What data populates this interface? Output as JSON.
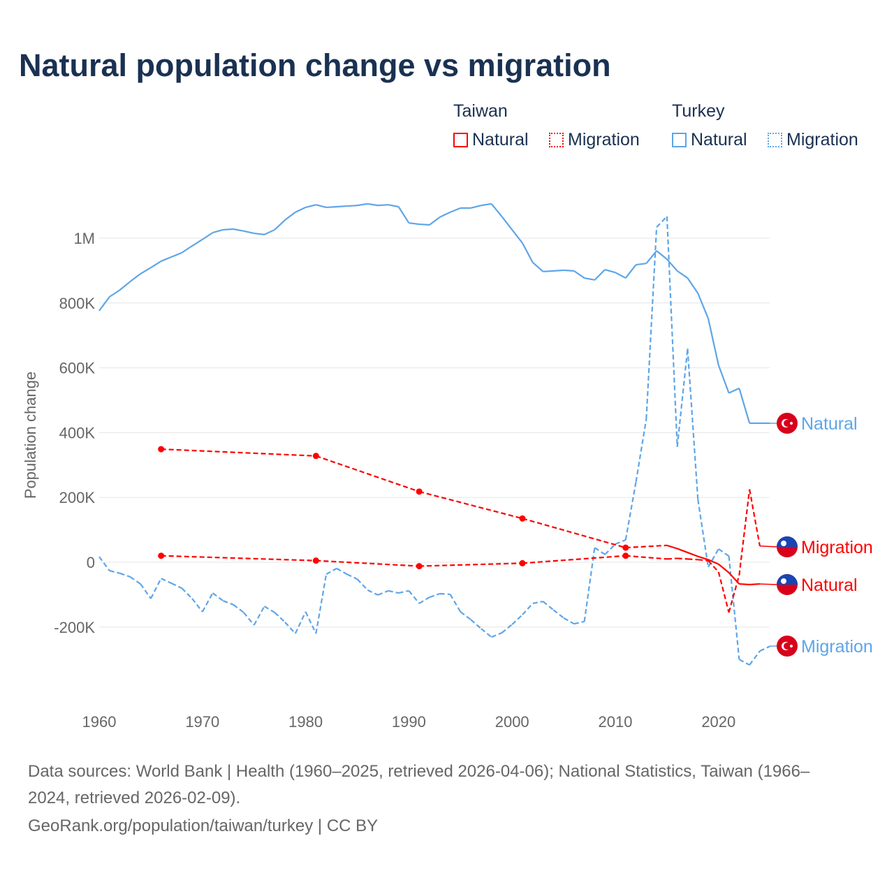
{
  "title": "Natural population change vs migration",
  "legend": {
    "taiwan": "Taiwan",
    "turkey": "Turkey",
    "natural": "Natural",
    "migration": "Migration"
  },
  "colors": {
    "taiwan": "#ff0000",
    "turkey": "#5ea5e8"
  },
  "sources": {
    "line1": "Data sources: World Bank | Health (1960–2025, retrieved 2026-04-06); National Statistics, Taiwan (1966–",
    "line2": "2024, retrieved 2026-02-09).",
    "line3": "GeoRank.org/population/taiwan/turkey | CC BY"
  },
  "chart_data": {
    "type": "line",
    "ylabel": "Population change",
    "ylim": [
      -420000,
      1150000
    ],
    "xlim": [
      1960,
      2025
    ],
    "yticks": [
      {
        "v": 1000000,
        "label": "1M"
      },
      {
        "v": 800000,
        "label": "800K"
      },
      {
        "v": 600000,
        "label": "600K"
      },
      {
        "v": 400000,
        "label": "400K"
      },
      {
        "v": 200000,
        "label": "200K"
      },
      {
        "v": 0,
        "label": "0"
      },
      {
        "v": -200000,
        "label": "-200K"
      }
    ],
    "xticks": [
      1960,
      1970,
      1980,
      1990,
      2000,
      2010,
      2020
    ],
    "series": [
      {
        "name": "Turkey Natural",
        "country": "turkey",
        "kind": "natural",
        "end_label": "Natural",
        "x": [
          1960,
          1961,
          1962,
          1963,
          1964,
          1965,
          1966,
          1967,
          1968,
          1969,
          1970,
          1971,
          1972,
          1973,
          1974,
          1975,
          1976,
          1977,
          1978,
          1979,
          1980,
          1981,
          1982,
          1983,
          1984,
          1985,
          1986,
          1987,
          1988,
          1989,
          1990,
          1991,
          1992,
          1993,
          1994,
          1995,
          1996,
          1997,
          1998,
          1999,
          2000,
          2001,
          2002,
          2003,
          2004,
          2005,
          2006,
          2007,
          2008,
          2009,
          2010,
          2011,
          2012,
          2013,
          2014,
          2015,
          2016,
          2017,
          2018,
          2019,
          2020,
          2021,
          2022,
          2023,
          2024,
          2025
        ],
        "y": [
          776000,
          819000,
          840000,
          866000,
          890000,
          909000,
          929000,
          942000,
          955000,
          976000,
          996000,
          1017000,
          1026000,
          1028000,
          1022000,
          1015000,
          1011000,
          1026000,
          1056000,
          1080000,
          1095000,
          1103000,
          1095000,
          1097000,
          1099000,
          1101000,
          1106000,
          1101000,
          1103000,
          1097000,
          1047000,
          1043000,
          1041000,
          1065000,
          1080000,
          1093000,
          1093000,
          1101000,
          1106000,
          1067000,
          1026000,
          985000,
          925000,
          897000,
          899000,
          901000,
          899000,
          877000,
          871000,
          903000,
          894000,
          877000,
          918000,
          922000,
          961000,
          935000,
          899000,
          877000,
          830000,
          752000,
          608000,
          522000,
          537000,
          429000,
          429000,
          429000
        ]
      },
      {
        "name": "Turkey Migration",
        "country": "turkey",
        "kind": "migration",
        "end_label": "Migration",
        "x": [
          1960,
          1961,
          1962,
          1963,
          1964,
          1965,
          1966,
          1967,
          1968,
          1969,
          1970,
          1971,
          1972,
          1973,
          1974,
          1975,
          1976,
          1977,
          1978,
          1979,
          1980,
          1981,
          1982,
          1983,
          1984,
          1985,
          1986,
          1987,
          1988,
          1989,
          1990,
          1991,
          1992,
          1993,
          1994,
          1995,
          1996,
          1997,
          1998,
          1999,
          2000,
          2001,
          2002,
          2003,
          2004,
          2005,
          2006,
          2007,
          2008,
          2009,
          2010,
          2011,
          2012,
          2013,
          2014,
          2015,
          2016,
          2017,
          2018,
          2019,
          2020,
          2021,
          2022,
          2023,
          2024,
          2025
        ],
        "y": [
          17000,
          -26000,
          -34000,
          -45000,
          -67000,
          -112000,
          -50000,
          -65000,
          -80000,
          -112000,
          -153000,
          -95000,
          -119000,
          -131000,
          -155000,
          -194000,
          -136000,
          -155000,
          -185000,
          -220000,
          -153000,
          -220000,
          -37000,
          -19000,
          -37000,
          -52000,
          -86000,
          -101000,
          -88000,
          -95000,
          -88000,
          -127000,
          -108000,
          -97000,
          -99000,
          -153000,
          -177000,
          -205000,
          -231000,
          -218000,
          -192000,
          -162000,
          -127000,
          -121000,
          -147000,
          -172000,
          -190000,
          -183000,
          45000,
          24000,
          56000,
          69000,
          248000,
          442000,
          1034000,
          1067000,
          356000,
          659000,
          194000,
          -15000,
          41000,
          19000,
          -300000,
          -317000,
          -274000,
          -259000
        ]
      },
      {
        "name": "Taiwan Natural",
        "country": "taiwan",
        "kind": "natural",
        "end_label": "Natural",
        "x": [
          1966,
          1981,
          1991,
          2001,
          2011,
          2015,
          2016,
          2017,
          2018,
          2019,
          2020,
          2021,
          2022,
          2023,
          2024
        ],
        "y": [
          349000,
          328000,
          218000,
          135000,
          45000,
          52000,
          42000,
          30000,
          18000,
          8000,
          -6000,
          -32000,
          -67000,
          -69000,
          -67000
        ]
      },
      {
        "name": "Taiwan Migration",
        "country": "taiwan",
        "kind": "migration",
        "end_label": "Migration",
        "x": [
          1966,
          1981,
          1991,
          2001,
          2011,
          2015,
          2016,
          2017,
          2018,
          2019,
          2020,
          2021,
          2022,
          2023,
          2024
        ],
        "y": [
          20000,
          5000,
          -12000,
          -3000,
          20000,
          10000,
          12000,
          10000,
          8000,
          5000,
          -30000,
          -155000,
          -40000,
          225000,
          50000
        ]
      }
    ]
  }
}
